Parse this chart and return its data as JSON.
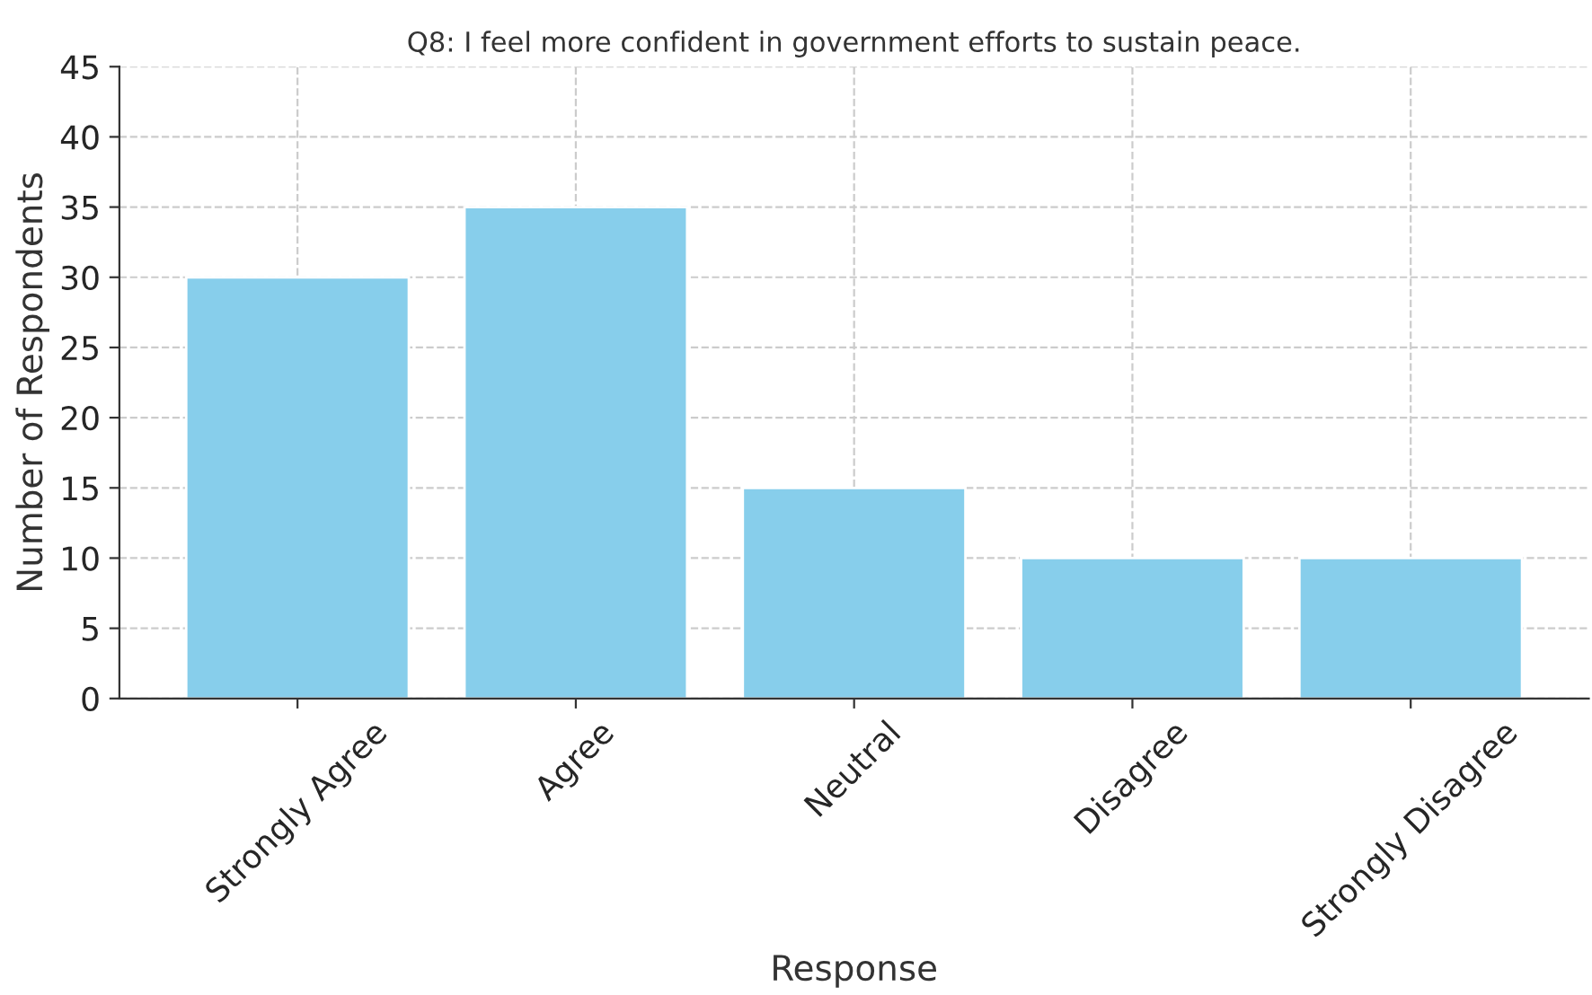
{
  "chart_data": {
    "type": "bar",
    "title": "Q8: I feel more confident in government efforts to sustain peace.",
    "xlabel": "Response",
    "ylabel": "Number of Respondents",
    "categories": [
      "Strongly Agree",
      "Agree",
      "Neutral",
      "Disagree",
      "Strongly Disagree"
    ],
    "values": [
      30,
      35,
      15,
      10,
      10
    ],
    "color": "#87ceeb",
    "ylim": [
      0,
      45
    ],
    "yticks": [
      0,
      5,
      10,
      15,
      20,
      25,
      30,
      35,
      40,
      45
    ],
    "grid": true
  }
}
